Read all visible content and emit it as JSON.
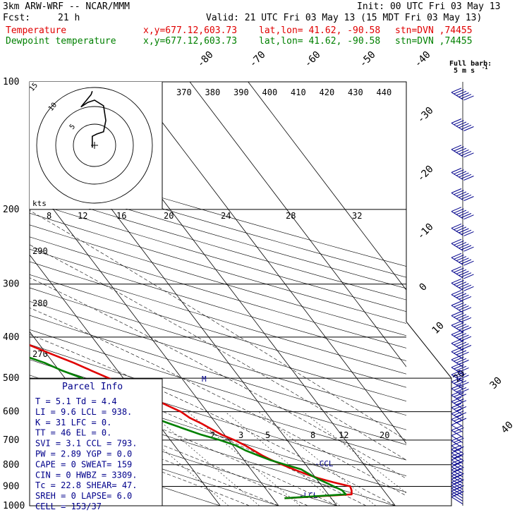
{
  "header": {
    "model": "3km ARW-WRF -- NCAR/MMM",
    "init": "Init: 00 UTC Fri 03 May 13",
    "fcst_label": "Fcst:",
    "fcst_value": "21 h",
    "valid": "Valid: 21 UTC Fri 03 May 13 (15 MDT Fri 03 May 13)",
    "temp_label": "Temperature",
    "dew_label": "Dewpoint temperature",
    "xy": "x,y=677.12,603.73",
    "latlon": "lat,lon= 41.62, -90.58",
    "stn": "stn=DVN ,74455"
  },
  "wind_key": {
    "line1": "Full barb:",
    "line2": "5 m s",
    "sup": "-1"
  },
  "parcel_info": {
    "title": "Parcel Info",
    "rows": [
      [
        "T",
        "5.1",
        "Td",
        "4.4"
      ],
      [
        "LI",
        "9.6",
        "LCL",
        "938."
      ],
      [
        "K",
        "31",
        "LFC",
        "0."
      ],
      [
        "TT",
        "46",
        "EL",
        "0."
      ],
      [
        "SVI",
        "3.1",
        "CCL",
        "793."
      ],
      [
        "PW",
        "2.89",
        "YGP",
        "0.0"
      ],
      [
        "CAPE",
        "0",
        "SWEAT",
        "159"
      ],
      [
        "CIN",
        "0",
        "HWBZ",
        "3309."
      ],
      [
        "Tc",
        "22.8",
        "SHEAR",
        "47."
      ],
      [
        "SREH",
        "0",
        "LAPSE",
        "6.0"
      ],
      [
        "CELL",
        "153/37",
        "",
        ""
      ]
    ]
  },
  "markers": {
    "ccl": "CCL",
    "lcl": "LCL",
    "m": "M"
  },
  "hodograph": {
    "unit": "kts",
    "speed_ticks": [
      "8",
      "12",
      "16",
      "20",
      "24",
      "28",
      "32"
    ],
    "ring_labels": [
      "5",
      "10",
      "15"
    ],
    "dir_labels": [
      "290",
      "280",
      "270"
    ],
    "theta_labels": [
      "370",
      "380",
      "390",
      "400",
      "410",
      "420",
      "430",
      "440"
    ]
  },
  "chart_data": {
    "type": "skew-t",
    "y_axis": {
      "scale": "log-pressure",
      "unit": "hPa",
      "range": [
        1000,
        100
      ],
      "ticks": [
        100,
        200,
        300,
        400,
        500,
        600,
        700,
        800,
        900,
        1000
      ]
    },
    "isotherm_labels": [
      -80,
      -70,
      -60,
      -50,
      -40,
      -30,
      -20,
      -10,
      0,
      10,
      20,
      30,
      40
    ],
    "mixing_ratio_labels": [
      2,
      3,
      5,
      8,
      12,
      20
    ],
    "series": [
      {
        "name": "Temperature",
        "color": "#e00000",
        "p": [
          960,
          940,
          920,
          900,
          880,
          860,
          840,
          820,
          800,
          780,
          760,
          740,
          720,
          700,
          680,
          660,
          640,
          620,
          600,
          580,
          560,
          540,
          520,
          500,
          480,
          460,
          440,
          420,
          400,
          380,
          360,
          340,
          320,
          300,
          280,
          260,
          240,
          220,
          200,
          180,
          160,
          150,
          140,
          130,
          120,
          110,
          100
        ],
        "t": [
          2.0,
          14.0,
          14.5,
          14.8,
          12.4,
          10.3,
          8.7,
          7.3,
          6.0,
          4.7,
          3.7,
          2.9,
          2.1,
          1.0,
          -0.5,
          -1.5,
          -2.5,
          -3.8,
          -4.5,
          -6.0,
          -7.5,
          -9.0,
          -10.5,
          -12.5,
          -14.5,
          -16.5,
          -19.0,
          -21.5,
          -24.0,
          -27.0,
          -30.5,
          -34.0,
          -38.0,
          -42.5,
          -46.5,
          -51.0,
          -54.5,
          -58.5,
          -60.0,
          -59.5,
          -56.0,
          -55.0,
          -55.0,
          -56.0,
          -56.5,
          -57.0,
          -57.0
        ]
      },
      {
        "name": "Dewpoint temperature",
        "color": "#008000",
        "p": [
          960,
          940,
          920,
          900,
          880,
          860,
          840,
          820,
          800,
          780,
          760,
          740,
          720,
          700,
          680,
          660,
          640,
          620,
          600,
          580,
          560,
          540,
          520,
          500,
          480,
          460,
          440,
          420,
          400,
          380,
          360,
          340,
          320,
          300,
          280,
          260,
          240,
          220,
          200,
          180,
          160,
          150,
          140,
          130,
          120,
          110,
          100
        ],
        "t": [
          2.0,
          13.0,
          12.9,
          12.0,
          11.0,
          10.0,
          9.3,
          8.6,
          6.5,
          4.5,
          3.0,
          1.5,
          0.5,
          -1.5,
          -4.0,
          -6.0,
          -8.0,
          -10.0,
          -12.0,
          -15.0,
          -17.0,
          -18.0,
          -18.5,
          -17.0,
          -19.5,
          -21.5,
          -24.5,
          -28.0,
          -30.5,
          -34.0,
          -37.5,
          -41.0,
          -45.0,
          -49.0,
          -54.0,
          -59.0,
          -64.5,
          -70.0,
          -75.0,
          -80.0,
          -83.0,
          -84.5,
          -87.0,
          -89.0,
          -91.0,
          -94.0,
          -97.0
        ]
      }
    ],
    "wind_barbs_p": [
      990,
      975,
      960,
      945,
      930,
      915,
      900,
      885,
      870,
      855,
      840,
      825,
      810,
      795,
      780,
      765,
      750,
      730,
      710,
      690,
      670,
      650,
      630,
      610,
      590,
      570,
      550,
      530,
      510,
      490,
      470,
      450,
      430,
      410,
      390,
      370,
      350,
      330,
      310,
      290,
      270,
      250,
      230,
      210,
      190,
      170,
      150,
      130,
      110
    ],
    "hodograph_path": [
      [
        -2,
        -2
      ],
      [
        -2,
        8
      ],
      [
        2,
        10
      ],
      [
        8,
        12
      ],
      [
        10,
        22
      ],
      [
        8,
        35
      ],
      [
        0,
        40
      ],
      [
        -6,
        38
      ],
      [
        -12,
        34
      ],
      [
        -3,
        45
      ],
      [
        -2,
        48
      ]
    ]
  }
}
